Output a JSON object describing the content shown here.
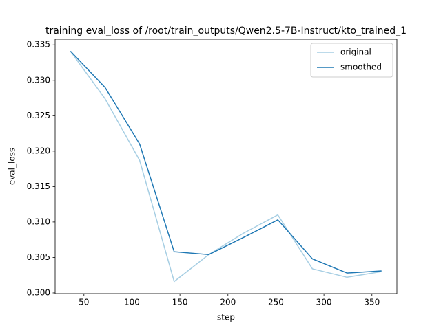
{
  "chart_data": {
    "type": "line",
    "title": "training eval_loss of /root/train_outputs/Qwen2.5-7B-Instruct/kto_trained_1",
    "x_label": "step",
    "y_label": "eval_loss",
    "x": [
      36,
      72,
      108,
      144,
      180,
      216,
      252,
      288,
      324,
      360
    ],
    "series": [
      {
        "name": "original",
        "color": "#a6cee3",
        "values": [
          0.3341,
          0.3274,
          0.3187,
          0.3016,
          0.3054,
          0.3084,
          0.311,
          0.3034,
          0.3022,
          0.303
        ]
      },
      {
        "name": "smoothed",
        "color": "#1f78b4",
        "values": [
          0.3341,
          0.329,
          0.321,
          0.3058,
          0.3054,
          0.3078,
          0.3103,
          0.3048,
          0.3028,
          0.3031
        ]
      }
    ],
    "xlim": [
      20,
      376
    ],
    "xticks": [
      50,
      100,
      150,
      200,
      250,
      300,
      350
    ],
    "ylim": [
      0.2999,
      0.3358
    ],
    "yticks": [
      {
        "value": 0.3,
        "label": "0.300"
      },
      0.305,
      {
        "value": 0.31,
        "label": "0.310"
      },
      0.315,
      {
        "value": 0.32,
        "label": "0.320"
      },
      0.325,
      {
        "value": 0.33,
        "label": "0.330"
      },
      0.335
    ],
    "grid": false,
    "legend": "upper right"
  }
}
